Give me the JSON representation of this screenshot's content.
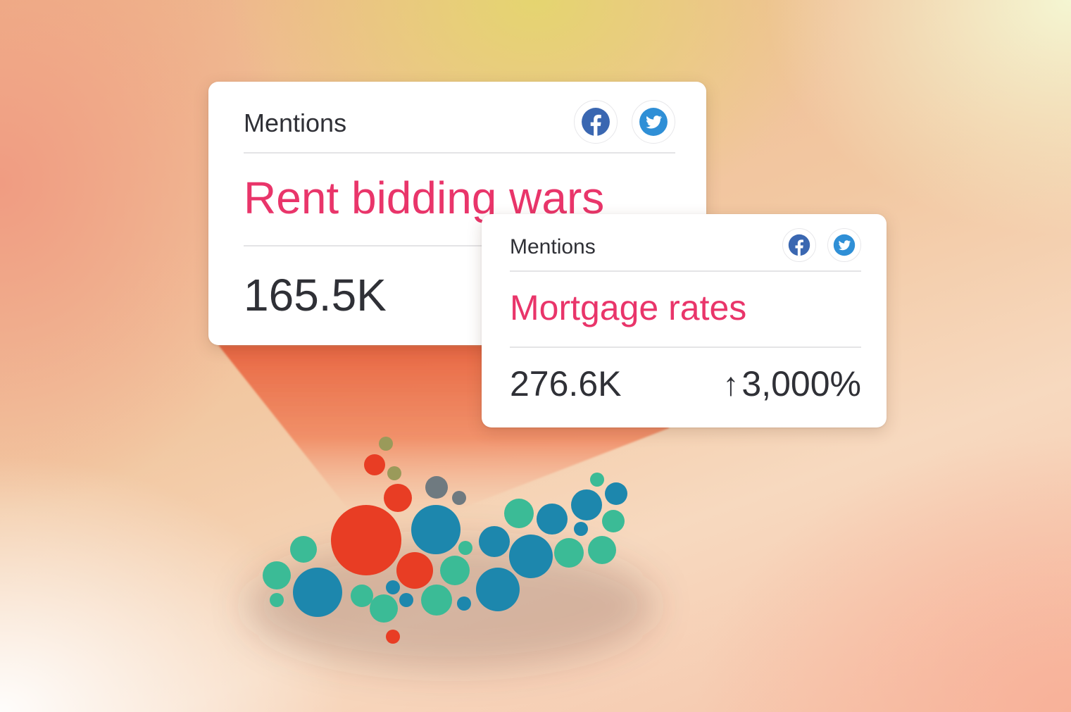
{
  "cards": [
    {
      "label": "Mentions",
      "topic": "Rent bidding wars",
      "count": "165.5K",
      "social_icons": [
        "facebook-icon",
        "twitter-icon"
      ]
    },
    {
      "label": "Mentions",
      "topic": "Mortgage rates",
      "count": "276.6K",
      "change": "3,000%",
      "change_direction": "up",
      "social_icons": [
        "facebook-icon",
        "twitter-icon"
      ]
    }
  ],
  "colors": {
    "topic": "#e9356a",
    "text": "#2f3036",
    "facebook": "#3a67b1",
    "twitter": "#2f8fd6",
    "bubble_red": "#e83d24",
    "bubble_teal": "#3bbb96",
    "bubble_blue": "#1d87ad",
    "bubble_olive": "#9a9a5a",
    "bubble_gray": "#6f7a80"
  }
}
